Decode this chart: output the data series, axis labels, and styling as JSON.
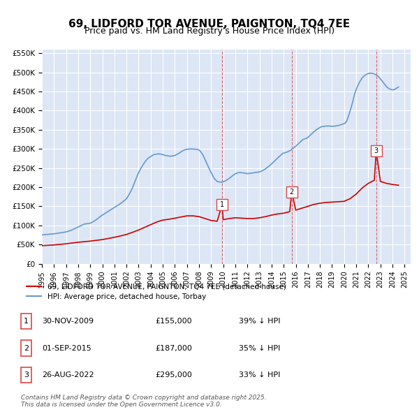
{
  "title": "69, LIDFORD TOR AVENUE, PAIGNTON, TQ4 7EE",
  "subtitle": "Price paid vs. HM Land Registry's House Price Index (HPI)",
  "background_color": "#ffffff",
  "plot_bg_color": "#dce6f5",
  "grid_color": "#ffffff",
  "ylim": [
    0,
    560000
  ],
  "yticks": [
    0,
    50000,
    100000,
    150000,
    200000,
    250000,
    300000,
    350000,
    400000,
    450000,
    500000,
    550000
  ],
  "ytick_labels": [
    "£0",
    "£50K",
    "£100K",
    "£150K",
    "£200K",
    "£250K",
    "£300K",
    "£350K",
    "£400K",
    "£450K",
    "£500K",
    "£550K"
  ],
  "xlim_start": 1995.0,
  "xlim_end": 2025.5,
  "xtick_years": [
    1995,
    1996,
    1997,
    1998,
    1999,
    2000,
    2001,
    2002,
    2003,
    2004,
    2005,
    2006,
    2007,
    2008,
    2009,
    2010,
    2011,
    2012,
    2013,
    2014,
    2015,
    2016,
    2017,
    2018,
    2019,
    2020,
    2021,
    2022,
    2023,
    2024,
    2025
  ],
  "sale_color": "#cc0000",
  "hpi_color": "#6699cc",
  "sale_dates_num": [
    2009.917,
    2015.667,
    2022.653
  ],
  "sale_prices": [
    155000,
    187000,
    295000
  ],
  "sale_labels": [
    "1",
    "2",
    "3"
  ],
  "dashed_line_color": "#dd4444",
  "legend_sale_label": "69, LIDFORD TOR AVENUE, PAIGNTON, TQ4 7EE (detached house)",
  "legend_hpi_label": "HPI: Average price, detached house, Torbay",
  "table_data": [
    {
      "num": "1",
      "date": "30-NOV-2009",
      "price": "£155,000",
      "hpi": "39% ↓ HPI"
    },
    {
      "num": "2",
      "date": "01-SEP-2015",
      "price": "£187,000",
      "hpi": "35% ↓ HPI"
    },
    {
      "num": "3",
      "date": "26-AUG-2022",
      "price": "£295,000",
      "hpi": "33% ↓ HPI"
    }
  ],
  "footnote": "Contains HM Land Registry data © Crown copyright and database right 2025.\nThis data is licensed under the Open Government Licence v3.0.",
  "hpi_data": {
    "years": [
      1995.0,
      1995.1,
      1995.2,
      1995.3,
      1995.4,
      1995.5,
      1995.6,
      1995.7,
      1995.8,
      1995.9,
      1996.0,
      1996.1,
      1996.2,
      1996.3,
      1996.4,
      1996.5,
      1996.6,
      1996.7,
      1996.8,
      1996.9,
      1997.0,
      1997.1,
      1997.2,
      1997.3,
      1997.4,
      1997.5,
      1997.6,
      1997.7,
      1997.8,
      1997.9,
      1998.0,
      1998.1,
      1998.2,
      1998.3,
      1998.4,
      1998.5,
      1998.6,
      1998.7,
      1998.8,
      1998.9,
      1999.0,
      1999.1,
      1999.2,
      1999.3,
      1999.4,
      1999.5,
      1999.6,
      1999.7,
      1999.8,
      1999.9,
      2000.0,
      2000.1,
      2000.2,
      2000.3,
      2000.4,
      2000.5,
      2000.6,
      2000.7,
      2000.8,
      2000.9,
      2001.0,
      2001.1,
      2001.2,
      2001.3,
      2001.4,
      2001.5,
      2001.6,
      2001.7,
      2001.8,
      2001.9,
      2002.0,
      2002.1,
      2002.2,
      2002.3,
      2002.4,
      2002.5,
      2002.6,
      2002.7,
      2002.8,
      2002.9,
      2003.0,
      2003.1,
      2003.2,
      2003.3,
      2003.4,
      2003.5,
      2003.6,
      2003.7,
      2003.8,
      2003.9,
      2004.0,
      2004.1,
      2004.2,
      2004.3,
      2004.4,
      2004.5,
      2004.6,
      2004.7,
      2004.8,
      2004.9,
      2005.0,
      2005.1,
      2005.2,
      2005.3,
      2005.4,
      2005.5,
      2005.6,
      2005.7,
      2005.8,
      2005.9,
      2006.0,
      2006.1,
      2006.2,
      2006.3,
      2006.4,
      2006.5,
      2006.6,
      2006.7,
      2006.8,
      2006.9,
      2007.0,
      2007.1,
      2007.2,
      2007.3,
      2007.4,
      2007.5,
      2007.6,
      2007.7,
      2007.8,
      2007.9,
      2008.0,
      2008.1,
      2008.2,
      2008.3,
      2008.4,
      2008.5,
      2008.6,
      2008.7,
      2008.8,
      2008.9,
      2009.0,
      2009.1,
      2009.2,
      2009.3,
      2009.4,
      2009.5,
      2009.6,
      2009.7,
      2009.8,
      2009.9,
      2010.0,
      2010.1,
      2010.2,
      2010.3,
      2010.4,
      2010.5,
      2010.6,
      2010.7,
      2010.8,
      2010.9,
      2011.0,
      2011.1,
      2011.2,
      2011.3,
      2011.4,
      2011.5,
      2011.6,
      2011.7,
      2011.8,
      2011.9,
      2012.0,
      2012.1,
      2012.2,
      2012.3,
      2012.4,
      2012.5,
      2012.6,
      2012.7,
      2012.8,
      2012.9,
      2013.0,
      2013.1,
      2013.2,
      2013.3,
      2013.4,
      2013.5,
      2013.6,
      2013.7,
      2013.8,
      2013.9,
      2014.0,
      2014.1,
      2014.2,
      2014.3,
      2014.4,
      2014.5,
      2014.6,
      2014.7,
      2014.8,
      2014.9,
      2015.0,
      2015.1,
      2015.2,
      2015.3,
      2015.4,
      2015.5,
      2015.6,
      2015.7,
      2015.8,
      2015.9,
      2016.0,
      2016.1,
      2016.2,
      2016.3,
      2016.4,
      2016.5,
      2016.6,
      2016.7,
      2016.8,
      2016.9,
      2017.0,
      2017.1,
      2017.2,
      2017.3,
      2017.4,
      2017.5,
      2017.6,
      2017.7,
      2017.8,
      2017.9,
      2018.0,
      2018.1,
      2018.2,
      2018.3,
      2018.4,
      2018.5,
      2018.6,
      2018.7,
      2018.8,
      2018.9,
      2019.0,
      2019.1,
      2019.2,
      2019.3,
      2019.4,
      2019.5,
      2019.6,
      2019.7,
      2019.8,
      2019.9,
      2020.0,
      2020.1,
      2020.2,
      2020.3,
      2020.4,
      2020.5,
      2020.6,
      2020.7,
      2020.8,
      2020.9,
      2021.0,
      2021.1,
      2021.2,
      2021.3,
      2021.4,
      2021.5,
      2021.6,
      2021.7,
      2021.8,
      2021.9,
      2022.0,
      2022.1,
      2022.2,
      2022.3,
      2022.4,
      2022.5,
      2022.6,
      2022.7,
      2022.8,
      2022.9,
      2023.0,
      2023.1,
      2023.2,
      2023.3,
      2023.4,
      2023.5,
      2023.6,
      2023.7,
      2023.8,
      2023.9,
      2024.0,
      2024.1,
      2024.2,
      2024.3,
      2024.4,
      2024.5
    ],
    "values": [
      75000,
      75500,
      76000,
      76200,
      76500,
      76800,
      77000,
      77200,
      77500,
      77800,
      78000,
      78500,
      79000,
      79500,
      80000,
      80500,
      81000,
      81500,
      82000,
      82500,
      83000,
      84000,
      85000,
      86000,
      87000,
      88500,
      90000,
      91500,
      93000,
      94500,
      96000,
      97500,
      99000,
      100500,
      102000,
      103500,
      104000,
      104500,
      104800,
      105000,
      106000,
      107500,
      109000,
      111000,
      113000,
      115000,
      117500,
      120000,
      122500,
      125000,
      127000,
      129000,
      131000,
      133000,
      135000,
      137000,
      139000,
      141000,
      143000,
      145000,
      147000,
      149000,
      151000,
      153000,
      155000,
      157000,
      159500,
      162000,
      164500,
      167000,
      170000,
      175000,
      180000,
      186000,
      192000,
      199000,
      207000,
      215000,
      223000,
      231000,
      238000,
      244000,
      250000,
      255000,
      260000,
      265000,
      269000,
      273000,
      276000,
      278000,
      280000,
      282000,
      284000,
      285500,
      286000,
      286500,
      287000,
      287000,
      286500,
      286000,
      285000,
      284000,
      283000,
      282500,
      282000,
      281500,
      281000,
      281000,
      281500,
      282000,
      283000,
      284500,
      286000,
      288000,
      290000,
      292000,
      294500,
      296000,
      297500,
      298500,
      299000,
      299500,
      299800,
      299900,
      300000,
      299800,
      299600,
      299200,
      298800,
      298400,
      297000,
      294000,
      290000,
      285000,
      279000,
      272000,
      265000,
      258000,
      251000,
      244000,
      238000,
      232000,
      226000,
      221000,
      218000,
      215000,
      214000,
      213500,
      213200,
      213000,
      214000,
      215500,
      217000,
      219000,
      221000,
      223000,
      225500,
      228000,
      230500,
      233000,
      235000,
      236500,
      237500,
      238000,
      238200,
      238000,
      237500,
      237000,
      236500,
      236000,
      235500,
      235800,
      236000,
      236500,
      237000,
      237500,
      238000,
      238500,
      239000,
      239500,
      240000,
      241000,
      242500,
      244000,
      246000,
      248000,
      250500,
      253000,
      255500,
      258000,
      261000,
      264000,
      267000,
      270000,
      273000,
      276000,
      279000,
      282000,
      285000,
      288000,
      289000,
      290000,
      291000,
      292000,
      293500,
      295000,
      297000,
      300000,
      302000,
      305000,
      307000,
      310000,
      313000,
      316000,
      319000,
      322000,
      324500,
      326000,
      327000,
      328000,
      330000,
      333000,
      336000,
      339000,
      342000,
      345000,
      347500,
      350000,
      352000,
      354000,
      356000,
      357500,
      358500,
      359000,
      359500,
      359800,
      360000,
      360000,
      359800,
      359500,
      359000,
      359200,
      359500,
      360000,
      360500,
      361000,
      362000,
      363000,
      364000,
      365000,
      366000,
      368000,
      372000,
      380000,
      390000,
      400000,
      410000,
      422000,
      435000,
      447000,
      455000,
      463000,
      470000,
      476000,
      481000,
      486000,
      489000,
      492000,
      494000,
      496000,
      497000,
      497500,
      497800,
      497500,
      497000,
      496000,
      494000,
      492000,
      490000,
      487000,
      483000,
      479000,
      475000,
      471000,
      467000,
      463000,
      460000,
      458000,
      456000,
      455000,
      454500,
      455000,
      456000,
      458000,
      460000,
      462000
    ]
  },
  "sale_hpi_data": {
    "years": [
      1995.0,
      1995.5,
      1996.0,
      1996.5,
      1997.0,
      1997.5,
      1998.0,
      1998.5,
      1999.0,
      1999.5,
      2000.0,
      2000.5,
      2001.0,
      2001.5,
      2002.0,
      2002.5,
      2003.0,
      2003.5,
      2004.0,
      2004.5,
      2005.0,
      2005.5,
      2006.0,
      2006.5,
      2007.0,
      2007.5,
      2008.0,
      2008.5,
      2009.0,
      2009.5,
      2009.917,
      2010.0,
      2010.5,
      2011.0,
      2011.5,
      2012.0,
      2012.5,
      2013.0,
      2013.5,
      2014.0,
      2014.5,
      2015.0,
      2015.5,
      2015.667,
      2016.0,
      2016.5,
      2017.0,
      2017.5,
      2018.0,
      2018.5,
      2019.0,
      2019.5,
      2020.0,
      2020.5,
      2021.0,
      2021.5,
      2022.0,
      2022.5,
      2022.653,
      2023.0,
      2023.5,
      2024.0,
      2024.5
    ],
    "values": [
      47000,
      48000,
      49000,
      50500,
      52000,
      54000,
      56000,
      57500,
      59000,
      61000,
      63000,
      66000,
      69000,
      72500,
      76500,
      82000,
      88000,
      95000,
      102000,
      109000,
      114000,
      116000,
      119000,
      122000,
      125000,
      125000,
      123000,
      118000,
      113000,
      111000,
      155000,
      115000,
      118000,
      120000,
      119000,
      118000,
      118000,
      120000,
      123000,
      127000,
      130000,
      132000,
      136000,
      187000,
      140000,
      145000,
      150000,
      155000,
      158000,
      160000,
      161000,
      162000,
      163000,
      170000,
      182000,
      198000,
      210000,
      218000,
      295000,
      215000,
      210000,
      207000,
      205000
    ]
  }
}
